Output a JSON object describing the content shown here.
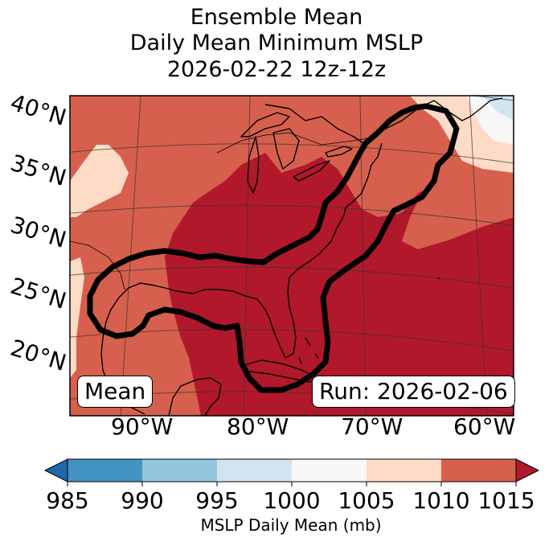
{
  "title": {
    "line1": "Ensemble Mean",
    "line2": "Daily Mean Minimum MSLP",
    "line3": "2026-02-22 12z-12z"
  },
  "map": {
    "lat_labels": [
      "40°N",
      "35°N",
      "30°N",
      "25°N",
      "20°N"
    ],
    "lon_labels": [
      "90°W",
      "80°W",
      "70°W",
      "60°W"
    ],
    "badge_left": "Mean",
    "badge_right": "Run: 2026-02-06"
  },
  "colorbar": {
    "ticks": [
      "985",
      "990",
      "995",
      "1000",
      "1005",
      "1010",
      "1015"
    ],
    "label": "MSLP Daily Mean (mb)",
    "colors": {
      "under": "#2166ac",
      "985_990": "#4393c3",
      "990_995": "#92c5de",
      "995_1000": "#d1e5f0",
      "1000_1005": "#f7f7f7",
      "1005_1010": "#fddbc7",
      "1010_1015": "#d6604d",
      "over": "#b2182b"
    }
  }
}
